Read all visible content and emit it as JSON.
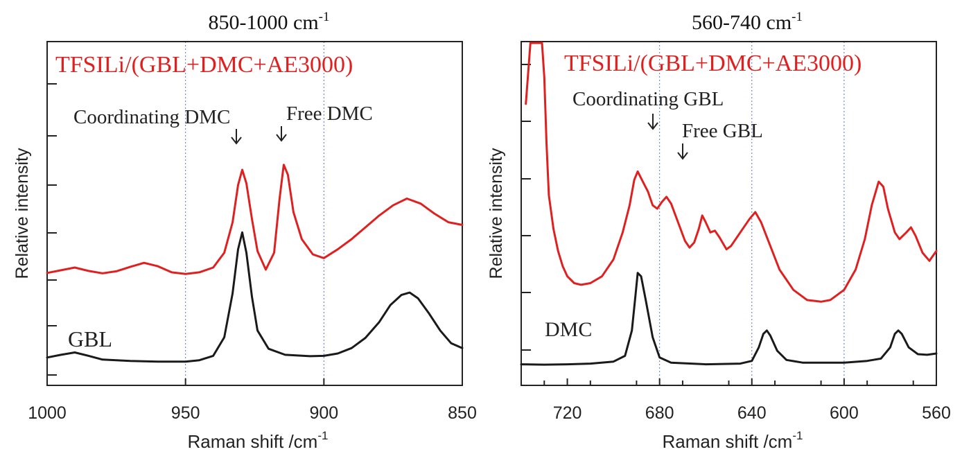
{
  "chart_data": [
    {
      "type": "line",
      "title": "850-1000 cm",
      "title_sup": "-1",
      "xlabel": "Raman shift /cm",
      "xlabel_sup": "-1",
      "ylabel": "Relative intensity",
      "xlim": [
        1000,
        850
      ],
      "x_reversed": true,
      "xticks": [
        "1000",
        "950",
        "900",
        "850"
      ],
      "grid_lines_x": [
        950,
        900
      ],
      "series": [
        {
          "name": "TFSILi/(GBL+DMC+AE3000)",
          "color": "#e0201f",
          "points": [
            [
              1000,
              0.32
            ],
            [
              995,
              0.328
            ],
            [
              990,
              0.336
            ],
            [
              985,
              0.326
            ],
            [
              980,
              0.319
            ],
            [
              975,
              0.325
            ],
            [
              970,
              0.338
            ],
            [
              965,
              0.35
            ],
            [
              960,
              0.34
            ],
            [
              955,
              0.322
            ],
            [
              950,
              0.317
            ],
            [
              945,
              0.322
            ],
            [
              940,
              0.336
            ],
            [
              936,
              0.38
            ],
            [
              933,
              0.47
            ],
            [
              931,
              0.58
            ],
            [
              929.5,
              0.625
            ],
            [
              928,
              0.585
            ],
            [
              926,
              0.48
            ],
            [
              924,
              0.385
            ],
            [
              921,
              0.33
            ],
            [
              918,
              0.38
            ],
            [
              916,
              0.54
            ],
            [
              914.5,
              0.64
            ],
            [
              913,
              0.61
            ],
            [
              911,
              0.5
            ],
            [
              908,
              0.42
            ],
            [
              904,
              0.375
            ],
            [
              900,
              0.364
            ],
            [
              895,
              0.39
            ],
            [
              890,
              0.42
            ],
            [
              885,
              0.455
            ],
            [
              880,
              0.49
            ],
            [
              875,
              0.52
            ],
            [
              870,
              0.54
            ],
            [
              865,
              0.525
            ],
            [
              860,
              0.495
            ],
            [
              855,
              0.47
            ],
            [
              850,
              0.462
            ]
          ]
        },
        {
          "name": "GBL",
          "color": "#1a1a1a",
          "points": [
            [
              1000,
              0.07
            ],
            [
              995,
              0.078
            ],
            [
              990,
              0.085
            ],
            [
              985,
              0.075
            ],
            [
              980,
              0.064
            ],
            [
              970,
              0.06
            ],
            [
              960,
              0.058
            ],
            [
              950,
              0.058
            ],
            [
              945,
              0.062
            ],
            [
              940,
              0.075
            ],
            [
              936,
              0.13
            ],
            [
              933,
              0.26
            ],
            [
              931,
              0.39
            ],
            [
              929.5,
              0.44
            ],
            [
              928,
              0.38
            ],
            [
              926,
              0.25
            ],
            [
              924,
              0.15
            ],
            [
              920,
              0.096
            ],
            [
              914,
              0.078
            ],
            [
              905,
              0.074
            ],
            [
              900,
              0.075
            ],
            [
              895,
              0.082
            ],
            [
              890,
              0.098
            ],
            [
              885,
              0.128
            ],
            [
              880,
              0.175
            ],
            [
              876,
              0.225
            ],
            [
              872,
              0.255
            ],
            [
              869,
              0.262
            ],
            [
              866,
              0.245
            ],
            [
              862,
              0.2
            ],
            [
              858,
              0.15
            ],
            [
              854,
              0.112
            ],
            [
              850,
              0.098
            ]
          ]
        }
      ],
      "annotations": [
        {
          "text": "TFSILi/(GBL+DMC+AE3000)",
          "color": "#e0201f"
        },
        {
          "text": "Coordinating DMC",
          "arrow_x": 929.5
        },
        {
          "text": "Free DMC",
          "arrow_x": 914.5
        },
        {
          "text": "GBL"
        }
      ]
    },
    {
      "type": "line",
      "title": "560-740 cm",
      "title_sup": "-1",
      "xlabel": "Raman shift /cm",
      "xlabel_sup": "-1",
      "ylabel": "Relative intensity",
      "xlim": [
        740,
        560
      ],
      "x_reversed": true,
      "xticks": [
        "720",
        "680",
        "640",
        "600",
        "560"
      ],
      "grid_lines_x": [
        680,
        640,
        600
      ],
      "series": [
        {
          "name": "TFSILi/(GBL+DMC+AE3000)",
          "color": "#e0201f",
          "points": [
            [
              738,
              0.82
            ],
            [
              736,
              1.0
            ],
            [
              731,
              1.0
            ],
            [
              730,
              0.9
            ],
            [
              729,
              0.7
            ],
            [
              728,
              0.55
            ],
            [
              726,
              0.45
            ],
            [
              724,
              0.385
            ],
            [
              722,
              0.34
            ],
            [
              720,
              0.31
            ],
            [
              717,
              0.29
            ],
            [
              714,
              0.285
            ],
            [
              710,
              0.29
            ],
            [
              705,
              0.31
            ],
            [
              700,
              0.36
            ],
            [
              696,
              0.44
            ],
            [
              693,
              0.52
            ],
            [
              691,
              0.595
            ],
            [
              689.5,
              0.62
            ],
            [
              688,
              0.6
            ],
            [
              685,
              0.56
            ],
            [
              683,
              0.52
            ],
            [
              681,
              0.51
            ],
            [
              679,
              0.53
            ],
            [
              677,
              0.545
            ],
            [
              675,
              0.525
            ],
            [
              672,
              0.47
            ],
            [
              669,
              0.415
            ],
            [
              667,
              0.395
            ],
            [
              665,
              0.41
            ],
            [
              663,
              0.45
            ],
            [
              661.5,
              0.49
            ],
            [
              660,
              0.47
            ],
            [
              658,
              0.44
            ],
            [
              656,
              0.445
            ],
            [
              654,
              0.425
            ],
            [
              651,
              0.39
            ],
            [
              649,
              0.4
            ],
            [
              645,
              0.44
            ],
            [
              641,
              0.48
            ],
            [
              638.5,
              0.5
            ],
            [
              636,
              0.47
            ],
            [
              632,
              0.4
            ],
            [
              628,
              0.33
            ],
            [
              622,
              0.27
            ],
            [
              616,
              0.24
            ],
            [
              610,
              0.235
            ],
            [
              606,
              0.24
            ],
            [
              600,
              0.27
            ],
            [
              595,
              0.33
            ],
            [
              591,
              0.42
            ],
            [
              588,
              0.52
            ],
            [
              585,
              0.59
            ],
            [
              583,
              0.575
            ],
            [
              581,
              0.51
            ],
            [
              578,
              0.44
            ],
            [
              576,
              0.42
            ],
            [
              573,
              0.44
            ],
            [
              571,
              0.455
            ],
            [
              569,
              0.43
            ],
            [
              566,
              0.38
            ],
            [
              563,
              0.356
            ],
            [
              560,
              0.385
            ]
          ]
        },
        {
          "name": "DMC",
          "color": "#1a1a1a",
          "points": [
            [
              740,
              0.05
            ],
            [
              730,
              0.049
            ],
            [
              720,
              0.05
            ],
            [
              710,
              0.052
            ],
            [
              700,
              0.058
            ],
            [
              695,
              0.075
            ],
            [
              692,
              0.15
            ],
            [
              690.5,
              0.25
            ],
            [
              689.5,
              0.32
            ],
            [
              688,
              0.31
            ],
            [
              686,
              0.24
            ],
            [
              683,
              0.13
            ],
            [
              680,
              0.07
            ],
            [
              675,
              0.055
            ],
            [
              660,
              0.05
            ],
            [
              645,
              0.052
            ],
            [
              640,
              0.06
            ],
            [
              637,
              0.1
            ],
            [
              635,
              0.14
            ],
            [
              633.5,
              0.15
            ],
            [
              632,
              0.135
            ],
            [
              629,
              0.09
            ],
            [
              625,
              0.063
            ],
            [
              618,
              0.055
            ],
            [
              600,
              0.055
            ],
            [
              590,
              0.06
            ],
            [
              584,
              0.067
            ],
            [
              580,
              0.1
            ],
            [
              578,
              0.14
            ],
            [
              576.5,
              0.15
            ],
            [
              575,
              0.14
            ],
            [
              572,
              0.1
            ],
            [
              568,
              0.08
            ],
            [
              564,
              0.078
            ],
            [
              560,
              0.082
            ]
          ]
        }
      ],
      "annotations": [
        {
          "text": "TFSILi/(GBL+DMC+AE3000)",
          "color": "#e0201f"
        },
        {
          "text": "Coordinating GBL",
          "arrow_x": 689.5
        },
        {
          "text": "Free GBL",
          "arrow_x": 677
        },
        {
          "text": "DMC"
        }
      ]
    }
  ]
}
